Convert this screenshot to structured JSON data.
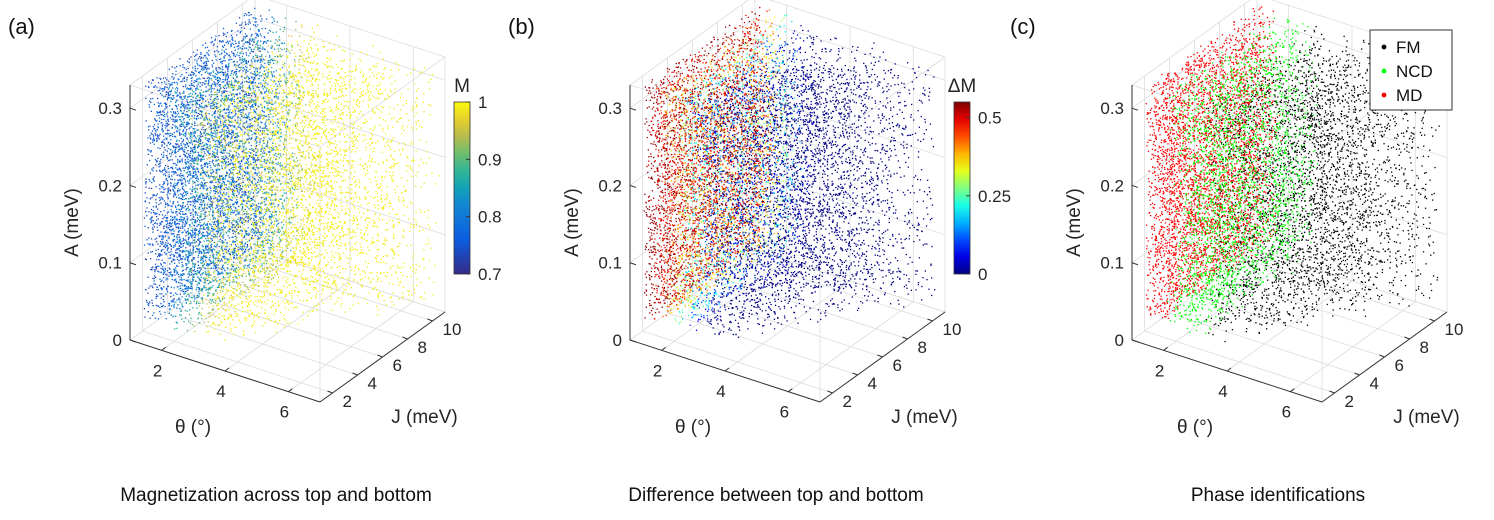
{
  "chart_data": [
    {
      "type": "scatter",
      "panel_label": "(a)",
      "caption": "Magnetization across top and bottom",
      "xlabel": "θ (°)",
      "ylabel": "J (meV)",
      "zlabel": "A (meV)",
      "xlim": [
        1,
        7
      ],
      "ylim": [
        1,
        11
      ],
      "zlim": [
        0,
        0.33
      ],
      "xticks": [
        "2",
        "4",
        "6"
      ],
      "yticks": [
        "2",
        "4",
        "6",
        "8",
        "10"
      ],
      "zticks": [
        "0",
        "0.1",
        "0.2",
        "0.3"
      ],
      "colorbar": {
        "title": "M",
        "range": [
          0.7,
          1
        ],
        "ticks": [
          "0.7",
          "0.8",
          "0.9",
          "1"
        ],
        "colormap": "parula"
      },
      "color_variable": "M",
      "grid": true
    },
    {
      "type": "scatter",
      "panel_label": "(b)",
      "caption": "Difference between top and bottom",
      "xlabel": "θ (°)",
      "ylabel": "J (meV)",
      "zlabel": "A (meV)",
      "xlim": [
        1,
        7
      ],
      "ylim": [
        1,
        11
      ],
      "zlim": [
        0,
        0.33
      ],
      "xticks": [
        "2",
        "4",
        "6"
      ],
      "yticks": [
        "2",
        "4",
        "6",
        "8",
        "10"
      ],
      "zticks": [
        "0",
        "0.1",
        "0.2",
        "0.3"
      ],
      "colorbar": {
        "title": "ΔM",
        "range": [
          0,
          0.55
        ],
        "ticks": [
          "0",
          "0.25",
          "0.5"
        ],
        "colormap": "jet"
      },
      "color_variable": "ΔM",
      "grid": true
    },
    {
      "type": "scatter",
      "panel_label": "(c)",
      "caption": "Phase identifications",
      "xlabel": "θ (°)",
      "ylabel": "J (meV)",
      "zlabel": "A (meV)",
      "xlim": [
        1,
        7
      ],
      "ylim": [
        1,
        11
      ],
      "zlim": [
        0,
        0.33
      ],
      "xticks": [
        "2",
        "4",
        "6"
      ],
      "yticks": [
        "2",
        "4",
        "6",
        "8",
        "10"
      ],
      "zticks": [
        "0",
        "0.1",
        "0.2",
        "0.3"
      ],
      "legend": {
        "placement": "top-right",
        "entries": [
          {
            "name": "FM",
            "color": "#000000"
          },
          {
            "name": "NCD",
            "color": "#00ff00"
          },
          {
            "name": "MD",
            "color": "#ff0000"
          }
        ]
      },
      "phase_boundaries": {
        "MD_to_NCD_theta_deg": 1.6,
        "NCD_to_FM_theta_deg": 2.8
      },
      "grid": true
    }
  ],
  "sampling": {
    "points_per_panel": 10000,
    "theta_min": 1.05,
    "theta_max_at_J10": 6.8,
    "theta_max_at_J2": 3.4
  }
}
